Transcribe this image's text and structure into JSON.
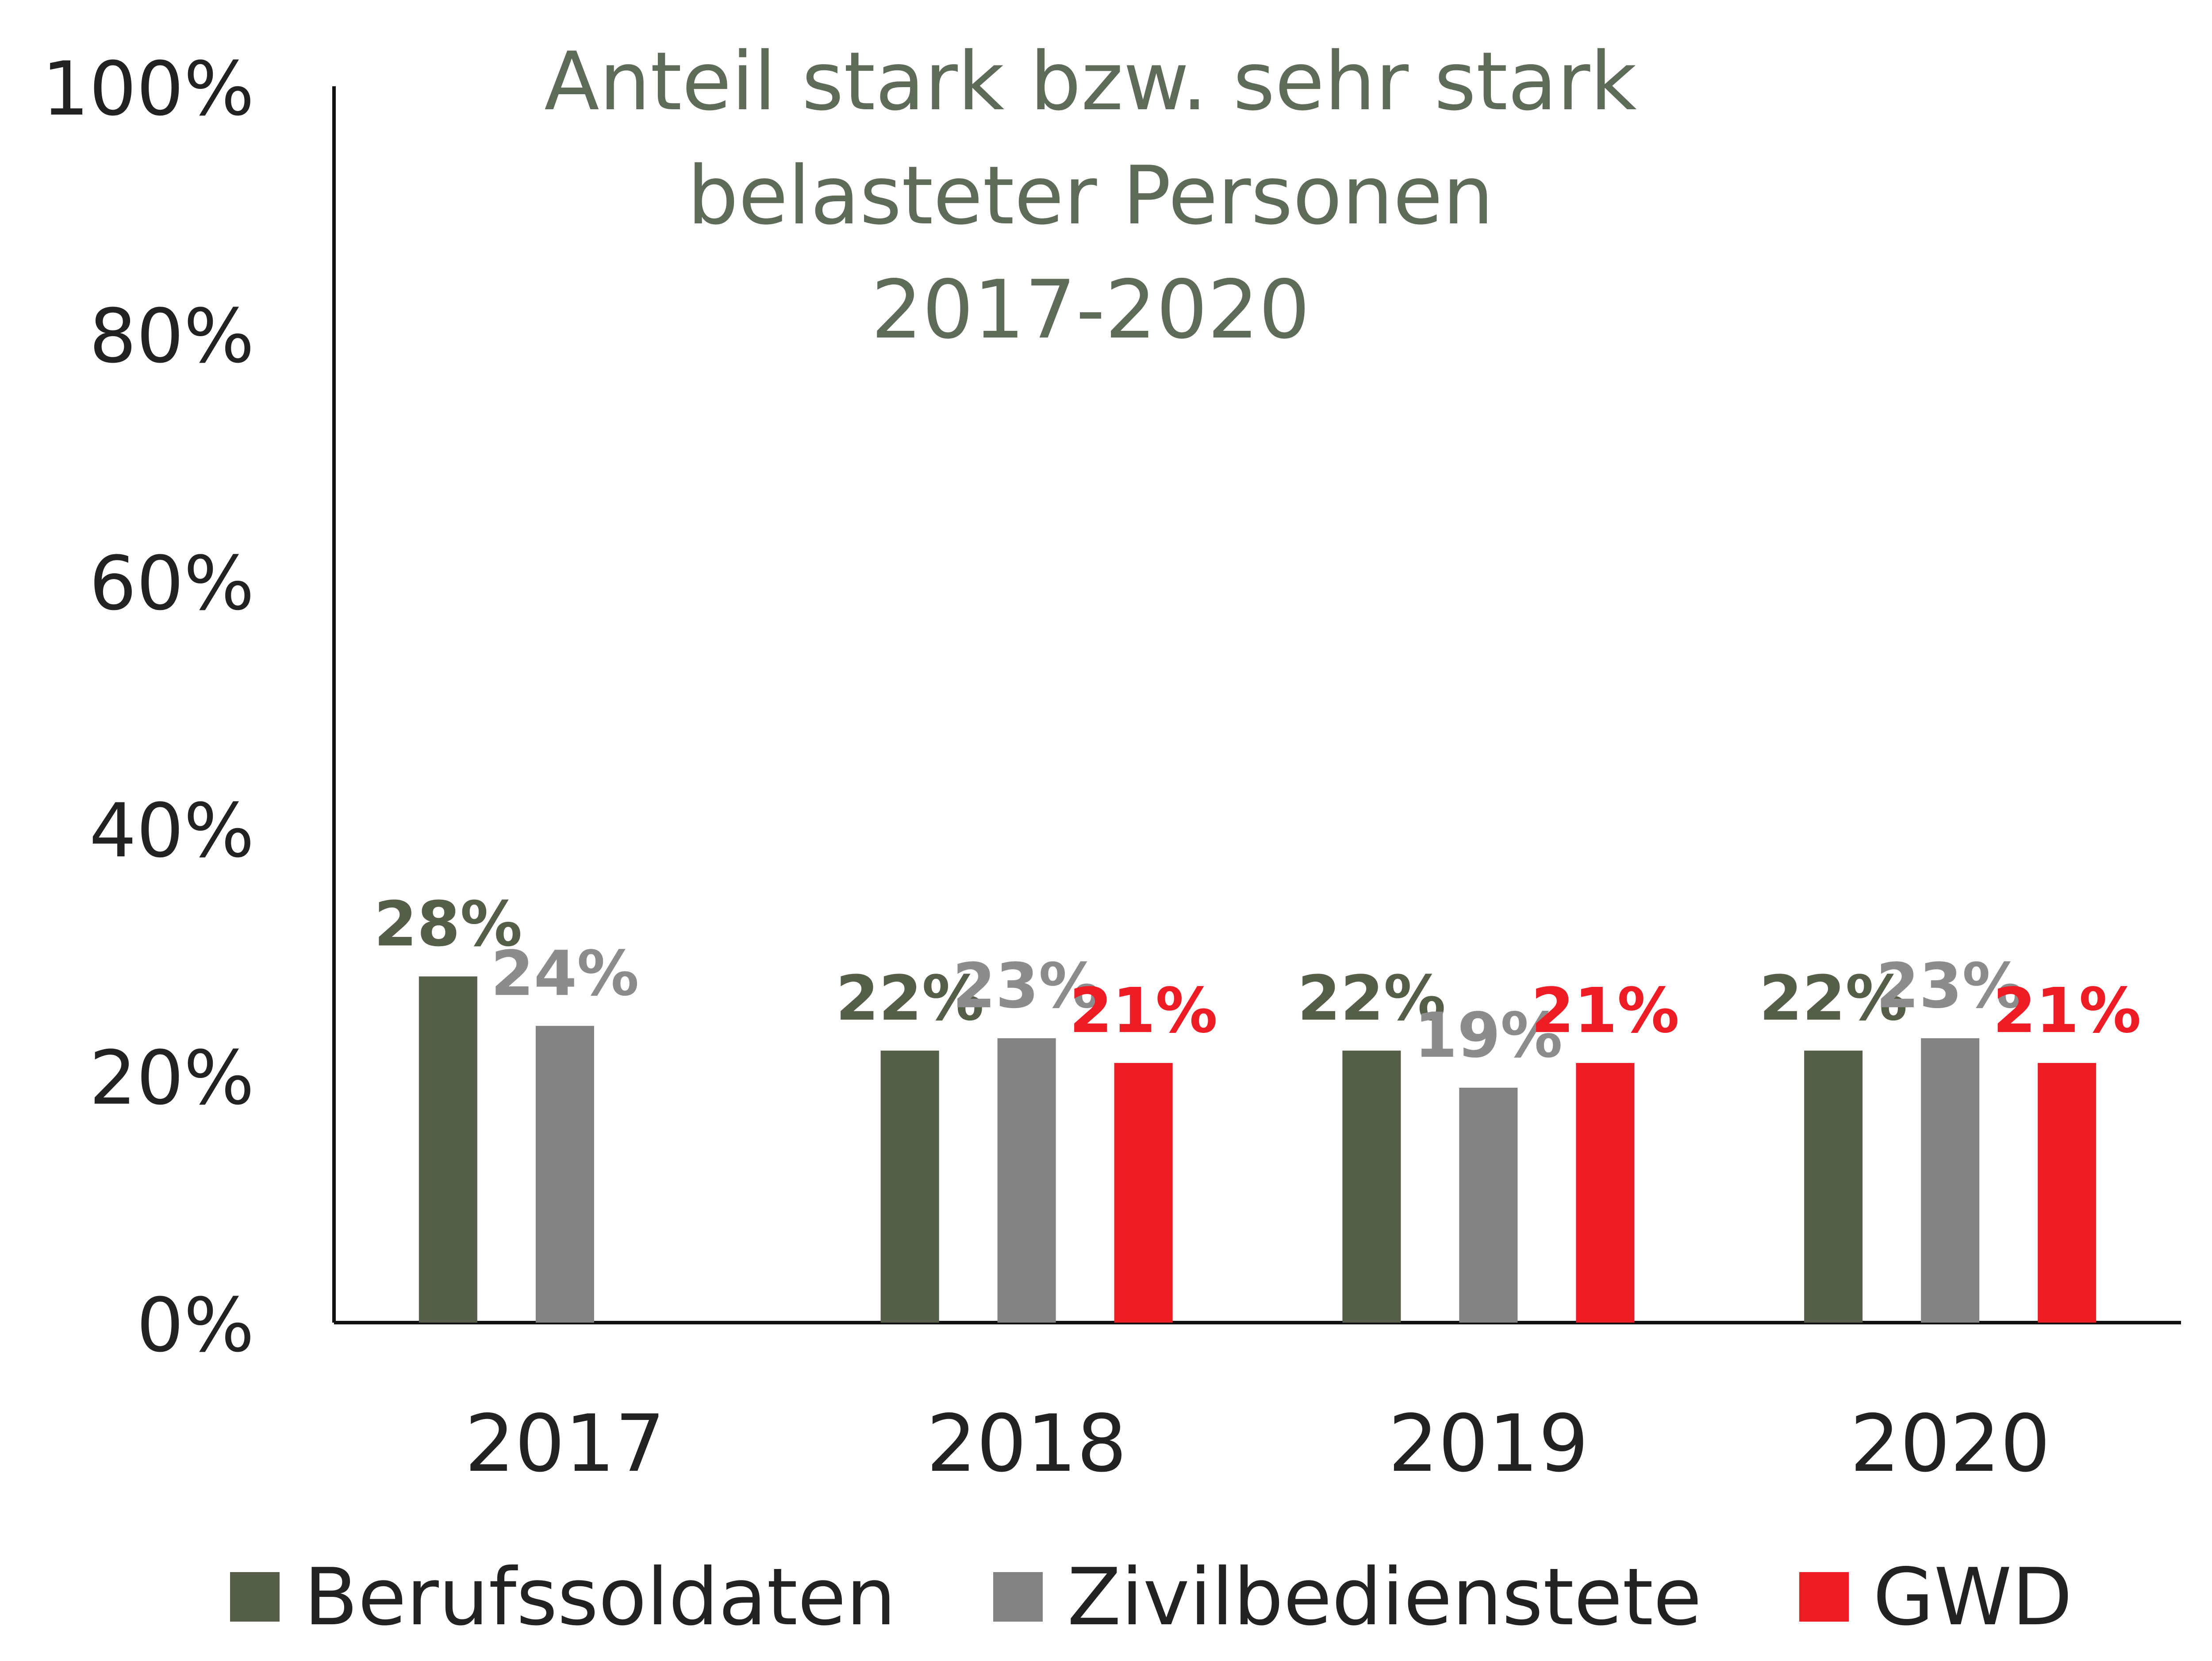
{
  "chart_data": {
    "type": "bar",
    "title_lines": [
      "Anteil stark bzw. sehr stark",
      "belasteter Personen",
      "2017-2020"
    ],
    "categories": [
      "2017",
      "2018",
      "2019",
      "2020"
    ],
    "series": [
      {
        "name": "Berufssoldaten",
        "color": "#545E48",
        "values": [
          28,
          22,
          22,
          22
        ],
        "labels": [
          "28%",
          "22%",
          "22%",
          "22%"
        ],
        "label_color": "#545E48"
      },
      {
        "name": "Zivilbedienstete",
        "color": "#828282",
        "values": [
          24,
          23,
          19,
          23
        ],
        "labels": [
          "24%",
          "23%",
          "19%",
          "23%"
        ],
        "label_color": "#8C8C8C"
      },
      {
        "name": "GWD",
        "color": "#EE1C25",
        "values": [
          null,
          21,
          21,
          21
        ],
        "labels": [
          "",
          "21%",
          "21%",
          "21%"
        ],
        "label_color": "#EE1C25"
      }
    ],
    "yticks": [
      "0%",
      "20%",
      "40%",
      "60%",
      "80%",
      "100%"
    ],
    "ylim": [
      0,
      100
    ],
    "grid": false,
    "legend_position": "bottom"
  }
}
